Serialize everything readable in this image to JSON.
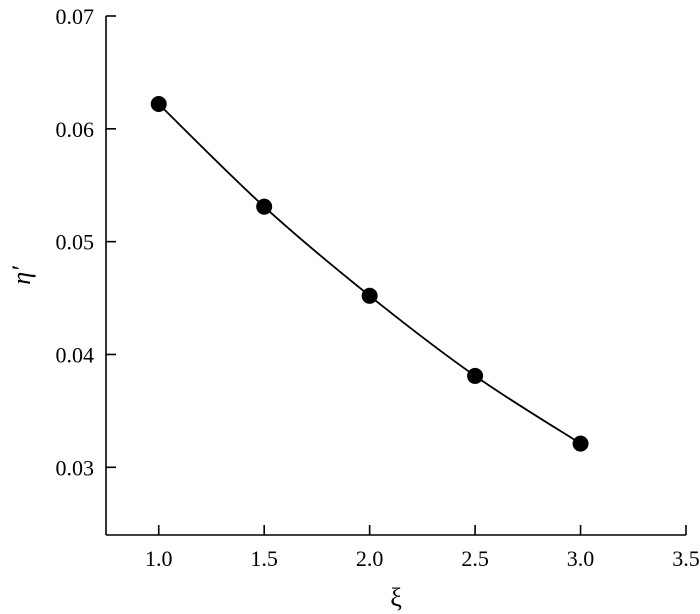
{
  "chart_data": {
    "type": "line",
    "title": "",
    "xlabel": "ξ",
    "ylabel": "η′",
    "xlim": [
      0.75,
      3.5
    ],
    "ylim": [
      0.024,
      0.07
    ],
    "xticks": [
      1.0,
      1.5,
      2.0,
      2.5,
      3.0,
      3.5
    ],
    "xtick_labels": [
      "1.0",
      "1.5",
      "2.0",
      "2.5",
      "3.0",
      "3.5"
    ],
    "yticks": [
      0.03,
      0.04,
      0.05,
      0.06,
      0.07
    ],
    "ytick_labels": [
      "0.03",
      "0.04",
      "0.05",
      "0.06",
      "0.07"
    ],
    "grid": false,
    "series": [
      {
        "x": [
          1.0,
          1.5,
          2.0,
          2.5,
          3.0
        ],
        "y": [
          0.0622,
          0.0531,
          0.0452,
          0.0381,
          0.0321
        ],
        "marker": "filled-circle",
        "color": "#000000"
      }
    ]
  }
}
